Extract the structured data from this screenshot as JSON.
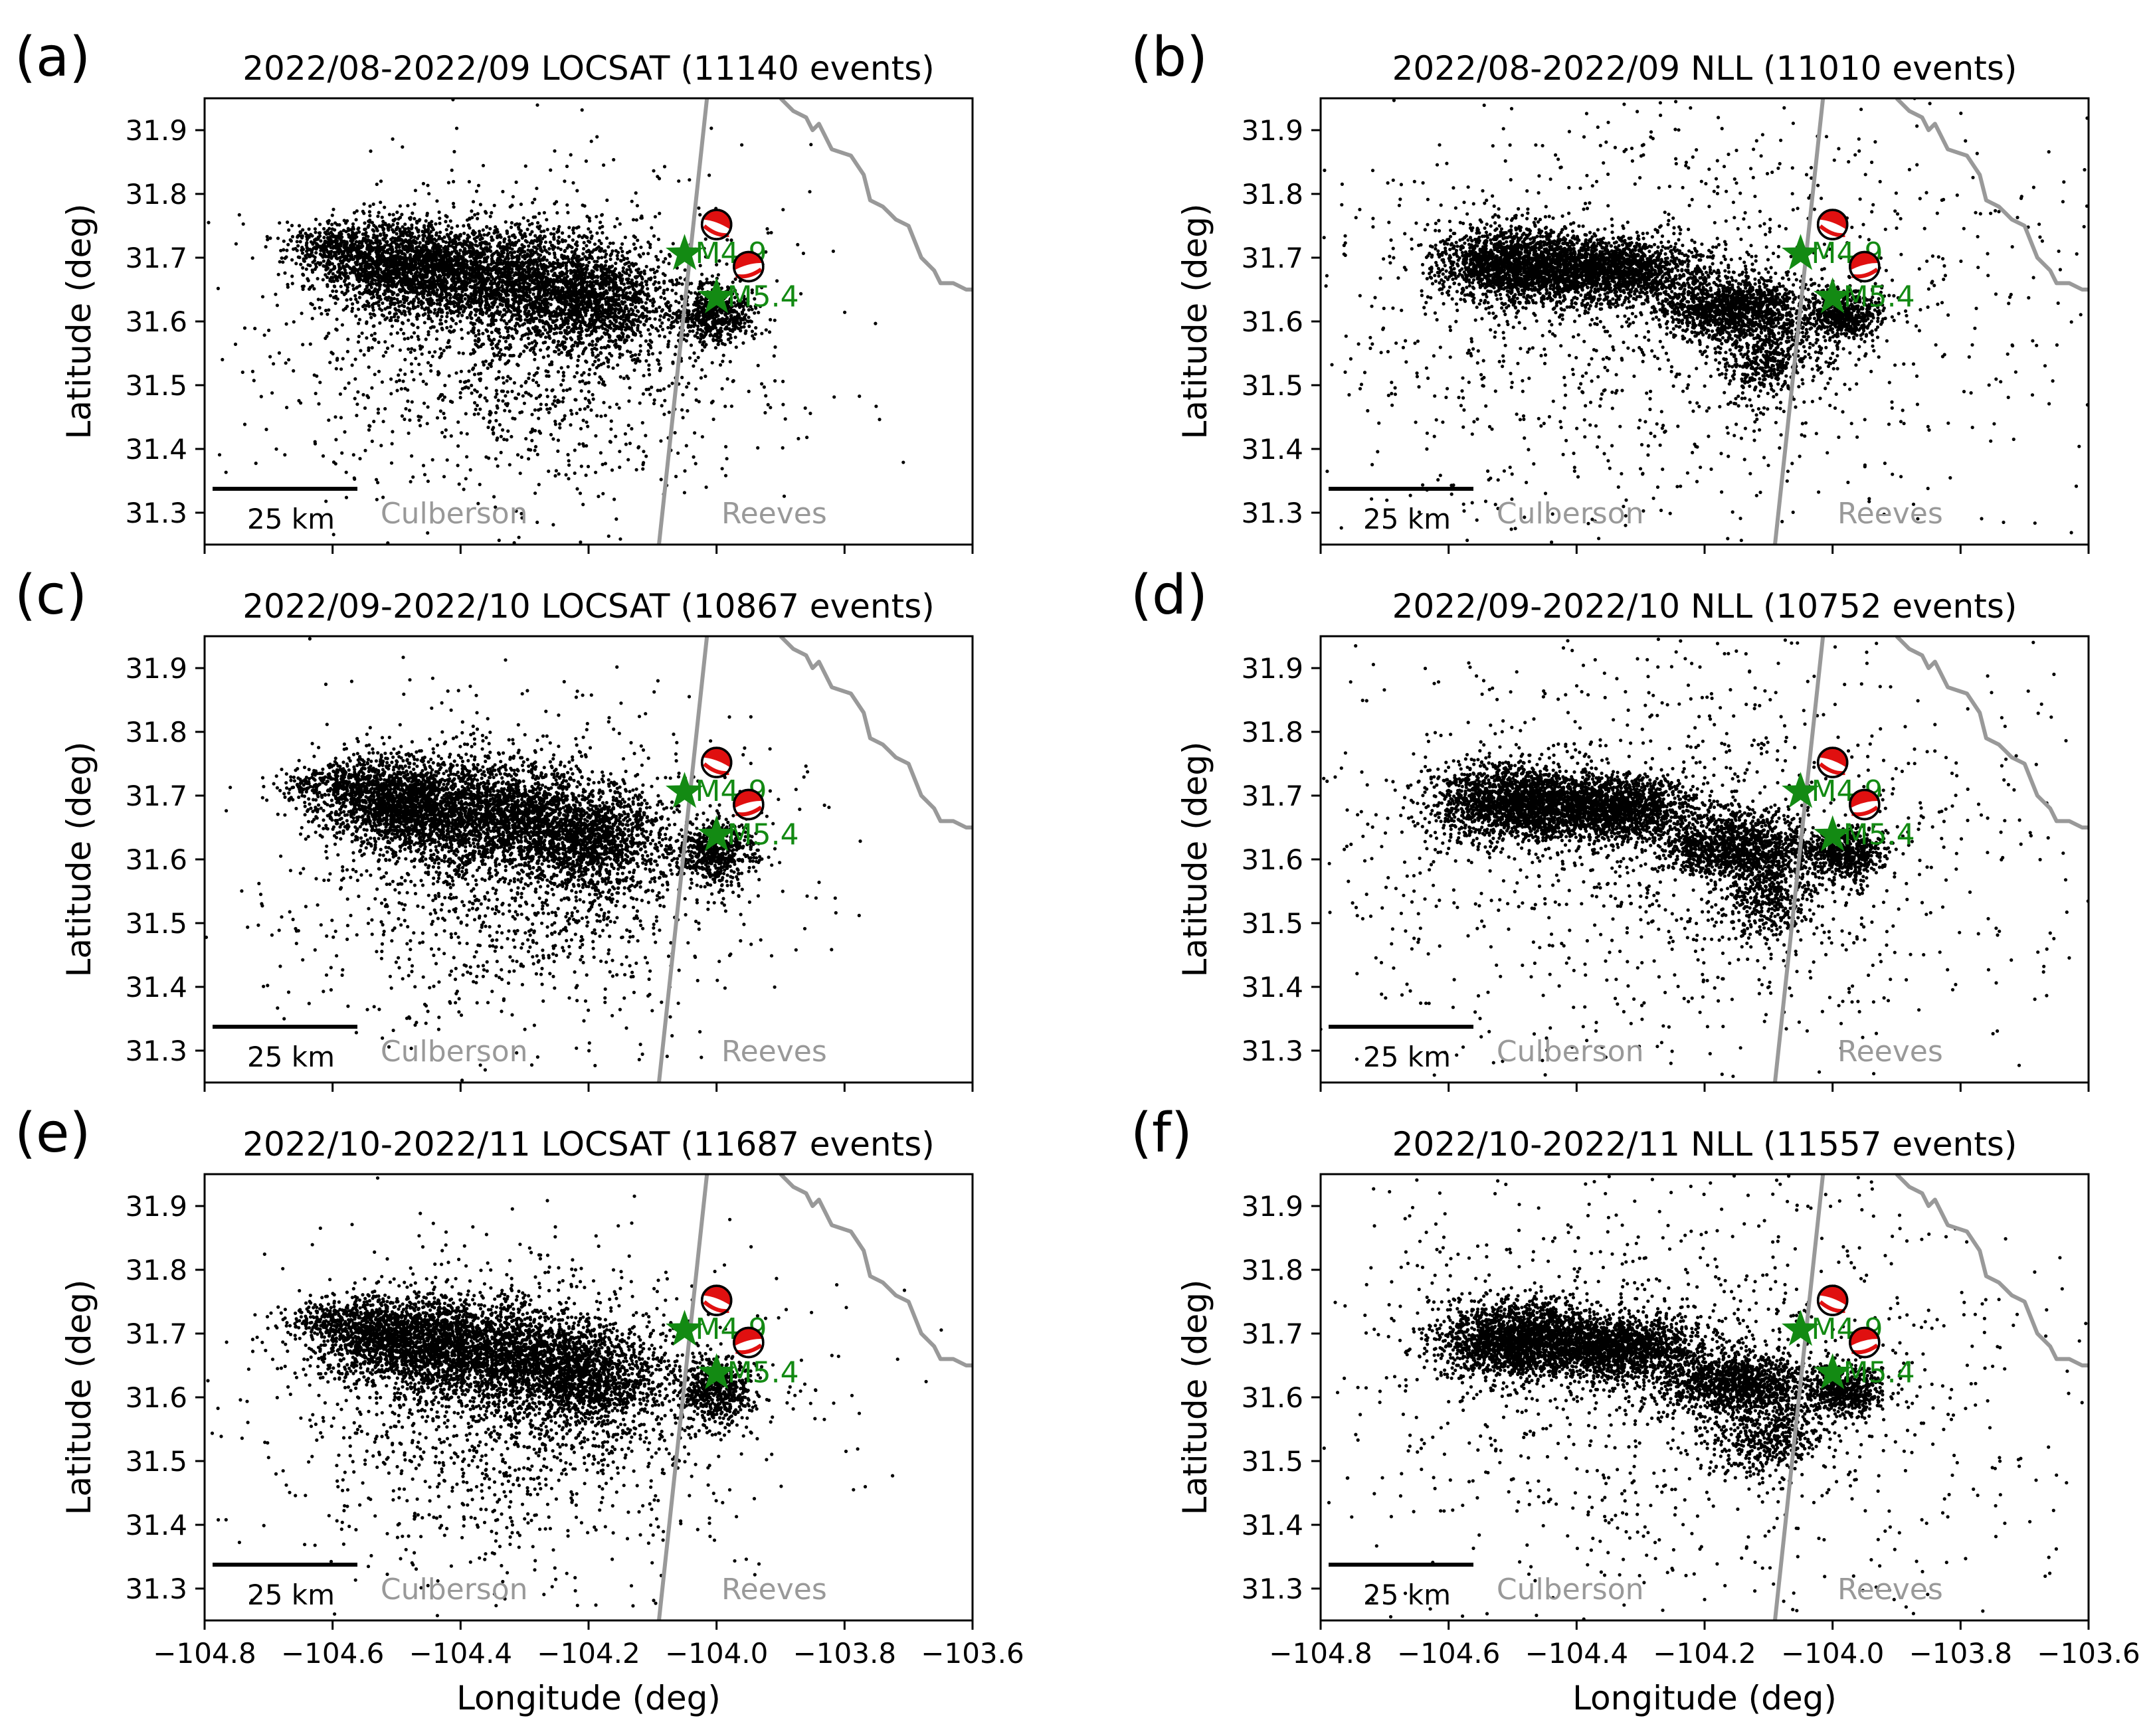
{
  "figure": {
    "xlabel": "Longitude (deg)",
    "ylabel": "Latitude (deg)",
    "xlim": [
      -104.8,
      -103.6
    ],
    "ylim": [
      31.25,
      31.95
    ],
    "xticks": [
      -104.8,
      -104.6,
      -104.4,
      -104.2,
      -104.0,
      -103.8,
      -103.6
    ],
    "xtick_labels": [
      "−104.8",
      "−104.6",
      "−104.4",
      "−104.2",
      "−104.0",
      "−103.8",
      "−103.6"
    ],
    "yticks": [
      31.3,
      31.4,
      31.5,
      31.6,
      31.7,
      31.8,
      31.9
    ],
    "ytick_labels": [
      "31.3",
      "31.4",
      "31.5",
      "31.6",
      "31.7",
      "31.8",
      "31.9"
    ],
    "scalebar_label": "25 km",
    "scalebar_km": 25,
    "county_labels": [
      {
        "text": "Culberson",
        "lon": -104.41,
        "lat": 31.3
      },
      {
        "text": "Reeves",
        "lon": -103.91,
        "lat": 31.3
      }
    ],
    "county_boundary": {
      "lon": [
        -104.015,
        -104.09
      ],
      "lat": [
        31.95,
        31.25
      ]
    },
    "state_boundary": {
      "lon": [
        -103.9,
        -103.88,
        -103.86,
        -103.85,
        -103.84,
        -103.82,
        -103.79,
        -103.77,
        -103.76,
        -103.74,
        -103.73,
        -103.72,
        -103.7,
        -103.68,
        -103.66,
        -103.65,
        -103.63,
        -103.61,
        -103.6
      ],
      "lat": [
        31.95,
        31.93,
        31.92,
        31.9,
        31.91,
        31.87,
        31.86,
        31.83,
        31.79,
        31.78,
        31.77,
        31.76,
        31.75,
        31.7,
        31.68,
        31.66,
        31.66,
        31.65,
        31.65
      ]
    },
    "colors": {
      "events": "#000000",
      "mainshock": "#138a13",
      "boundary": "#999999",
      "county_text": "#999999",
      "beachball_fill": "#e01010"
    },
    "focal_mechanisms": [
      {
        "lon": -104.0,
        "lat": 31.752
      },
      {
        "lon": -103.95,
        "lat": 31.686
      }
    ],
    "mainshocks": [
      {
        "label": "M4.9",
        "lon": -104.05,
        "lat": 31.706
      },
      {
        "label": "M5.4",
        "lon": -104.0,
        "lat": 31.638
      }
    ]
  },
  "panels": [
    {
      "letter": "(a)",
      "title": "2022/08-2022/09 LOCSAT (11140 events)",
      "method": "LOCSAT",
      "events": 11140
    },
    {
      "letter": "(b)",
      "title": "2022/08-2022/09 NLL (11010 events)",
      "method": "NLL",
      "events": 11010
    },
    {
      "letter": "(c)",
      "title": "2022/09-2022/10 LOCSAT (10867 events)",
      "method": "LOCSAT",
      "events": 10867
    },
    {
      "letter": "(d)",
      "title": "2022/09-2022/10 NLL (10752 events)",
      "method": "NLL",
      "events": 10752
    },
    {
      "letter": "(e)",
      "title": "2022/10-2022/11 LOCSAT (11687 events)",
      "method": "LOCSAT",
      "events": 11687
    },
    {
      "letter": "(f)",
      "title": "2022/10-2022/11 NLL (11557 events)",
      "method": "NLL",
      "events": 11557
    }
  ],
  "chart_data": [
    {
      "type": "scatter",
      "title": "2022/08-2022/09 LOCSAT (11140 events)",
      "xlabel": "Longitude (deg)",
      "ylabel": "Latitude (deg)",
      "xlim": [
        -104.8,
        -103.6
      ],
      "ylim": [
        31.25,
        31.95
      ],
      "event_count": 11140,
      "cluster_centers": [
        {
          "lon": -104.5,
          "lat": 31.69
        },
        {
          "lon": -104.35,
          "lat": 31.67
        },
        {
          "lon": -104.2,
          "lat": 31.63
        },
        {
          "lon": -104.0,
          "lat": 31.61
        }
      ],
      "markers": [
        {
          "kind": "star",
          "label": "M4.9",
          "lon": -104.05,
          "lat": 31.706
        },
        {
          "kind": "star",
          "label": "M5.4",
          "lon": -104.0,
          "lat": 31.638
        }
      ]
    },
    {
      "type": "scatter",
      "title": "2022/08-2022/09 NLL (11010 events)",
      "xlabel": "Longitude (deg)",
      "ylabel": "Latitude (deg)",
      "xlim": [
        -104.8,
        -103.6
      ],
      "ylim": [
        31.25,
        31.95
      ],
      "event_count": 11010,
      "cluster_centers": [
        {
          "lon": -104.5,
          "lat": 31.69
        },
        {
          "lon": -104.35,
          "lat": 31.68
        },
        {
          "lon": -104.15,
          "lat": 31.62
        },
        {
          "lon": -103.98,
          "lat": 31.61
        }
      ],
      "markers": [
        {
          "kind": "star",
          "label": "M4.9",
          "lon": -104.05,
          "lat": 31.706
        },
        {
          "kind": "star",
          "label": "M5.4",
          "lon": -104.0,
          "lat": 31.638
        }
      ]
    },
    {
      "type": "scatter",
      "title": "2022/09-2022/10 LOCSAT (10867 events)",
      "xlabel": "Longitude (deg)",
      "ylabel": "Latitude (deg)",
      "xlim": [
        -104.8,
        -103.6
      ],
      "ylim": [
        31.25,
        31.95
      ],
      "event_count": 10867,
      "cluster_centers": [
        {
          "lon": -104.5,
          "lat": 31.69
        },
        {
          "lon": -104.35,
          "lat": 31.67
        },
        {
          "lon": -104.2,
          "lat": 31.63
        },
        {
          "lon": -104.0,
          "lat": 31.61
        }
      ],
      "markers": [
        {
          "kind": "star",
          "label": "M4.9",
          "lon": -104.05,
          "lat": 31.706
        },
        {
          "kind": "star",
          "label": "M5.4",
          "lon": -104.0,
          "lat": 31.638
        }
      ]
    },
    {
      "type": "scatter",
      "title": "2022/09-2022/10 NLL (10752 events)",
      "xlabel": "Longitude (deg)",
      "ylabel": "Latitude (deg)",
      "xlim": [
        -104.8,
        -103.6
      ],
      "ylim": [
        31.25,
        31.95
      ],
      "event_count": 10752,
      "cluster_centers": [
        {
          "lon": -104.5,
          "lat": 31.69
        },
        {
          "lon": -104.35,
          "lat": 31.68
        },
        {
          "lon": -104.15,
          "lat": 31.62
        },
        {
          "lon": -103.98,
          "lat": 31.61
        }
      ],
      "markers": [
        {
          "kind": "star",
          "label": "M4.9",
          "lon": -104.05,
          "lat": 31.706
        },
        {
          "kind": "star",
          "label": "M5.4",
          "lon": -104.0,
          "lat": 31.638
        }
      ]
    },
    {
      "type": "scatter",
      "title": "2022/10-2022/11 LOCSAT (11687 events)",
      "xlabel": "Longitude (deg)",
      "ylabel": "Latitude (deg)",
      "xlim": [
        -104.8,
        -103.6
      ],
      "ylim": [
        31.25,
        31.95
      ],
      "event_count": 11687,
      "cluster_centers": [
        {
          "lon": -104.5,
          "lat": 31.69
        },
        {
          "lon": -104.35,
          "lat": 31.67
        },
        {
          "lon": -104.2,
          "lat": 31.63
        },
        {
          "lon": -104.0,
          "lat": 31.61
        }
      ],
      "markers": [
        {
          "kind": "star",
          "label": "M4.9",
          "lon": -104.05,
          "lat": 31.706
        },
        {
          "kind": "star",
          "label": "M5.4",
          "lon": -104.0,
          "lat": 31.638
        }
      ]
    },
    {
      "type": "scatter",
      "title": "2022/10-2022/11 NLL (11557 events)",
      "xlabel": "Longitude (deg)",
      "ylabel": "Latitude (deg)",
      "xlim": [
        -104.8,
        -103.6
      ],
      "ylim": [
        31.25,
        31.95
      ],
      "event_count": 11557,
      "cluster_centers": [
        {
          "lon": -104.5,
          "lat": 31.69
        },
        {
          "lon": -104.35,
          "lat": 31.68
        },
        {
          "lon": -104.15,
          "lat": 31.62
        },
        {
          "lon": -103.98,
          "lat": 31.61
        }
      ],
      "markers": [
        {
          "kind": "star",
          "label": "M4.9",
          "lon": -104.05,
          "lat": 31.706
        },
        {
          "kind": "star",
          "label": "M5.4",
          "lon": -104.0,
          "lat": 31.638
        }
      ]
    }
  ]
}
